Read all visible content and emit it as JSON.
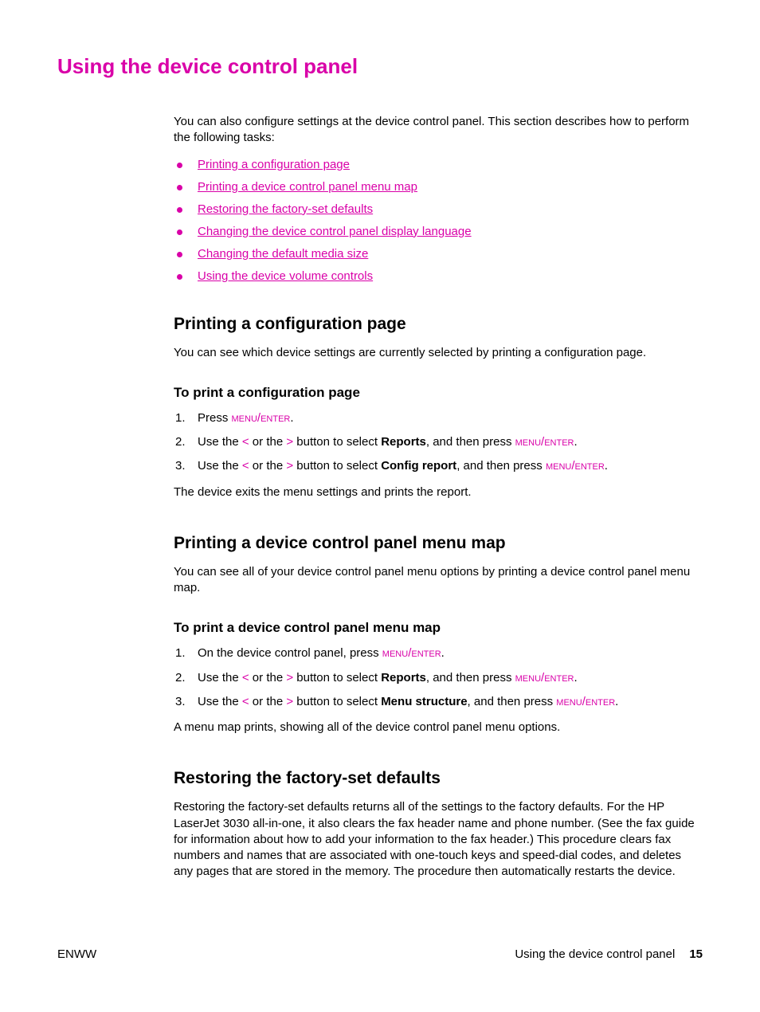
{
  "colors": {
    "accent": "#d900a8",
    "text": "#000000",
    "background": "#ffffff"
  },
  "title": "Using the device control panel",
  "intro": "You can also configure settings at the device control panel. This section describes how to perform the following tasks:",
  "links": [
    "Printing a configuration page",
    "Printing a device control panel menu map",
    "Restoring the factory-set defaults",
    "Changing the device control panel display language",
    "Changing the default media size",
    "Using the device volume controls"
  ],
  "section1": {
    "heading": "Printing a configuration page",
    "body": "You can see which device settings are currently selected by printing a configuration page.",
    "subheading": "To print a configuration page",
    "steps": {
      "s1_pre": "Press ",
      "s2_pre": "Use the ",
      "s2_lt": "<",
      "s2_mid1": " or the ",
      "s2_gt": ">",
      "s2_mid2": " button to select ",
      "s2_bold": "Reports",
      "s2_mid3": ", and then press ",
      "s3_pre": "Use the ",
      "s3_lt": "<",
      "s3_mid1": " or the ",
      "s3_gt": ">",
      "s3_mid2": " button to select ",
      "s3_bold": "Config report",
      "s3_mid3": ", and then press "
    },
    "menu": "menu",
    "enter": "enter",
    "slash": "/",
    "period": ".",
    "after": "The device exits the menu settings and prints the report."
  },
  "section2": {
    "heading": "Printing a device control panel menu map",
    "body": "You can see all of your device control panel menu options by printing a device control panel menu map.",
    "subheading": "To print a device control panel menu map",
    "steps": {
      "s1_pre": "On the device control panel, press ",
      "s2_pre": "Use the ",
      "s2_lt": "<",
      "s2_mid1": " or the ",
      "s2_gt": ">",
      "s2_mid2": " button to select ",
      "s2_bold": "Reports",
      "s2_mid3": ", and then press ",
      "s3_pre": "Use the ",
      "s3_lt": "<",
      "s3_mid1": " or the ",
      "s3_gt": ">",
      "s3_mid2": " button to select ",
      "s3_bold": "Menu structure",
      "s3_mid3": ", and then press "
    },
    "after": "A menu map prints, showing all of the device control panel menu options."
  },
  "section3": {
    "heading": "Restoring the factory-set defaults",
    "body": "Restoring the factory-set defaults returns all of the settings to the factory defaults. For the HP LaserJet 3030 all-in-one, it also clears the fax header name and phone number. (See the fax guide for information about how to add your information to the fax header.) This procedure clears fax numbers and names that are associated with one-touch keys and speed-dial codes, and deletes any pages that are stored in the memory. The procedure then automatically restarts the device."
  },
  "footer": {
    "left": "ENWW",
    "right": "Using the device control panel",
    "page": "15"
  }
}
